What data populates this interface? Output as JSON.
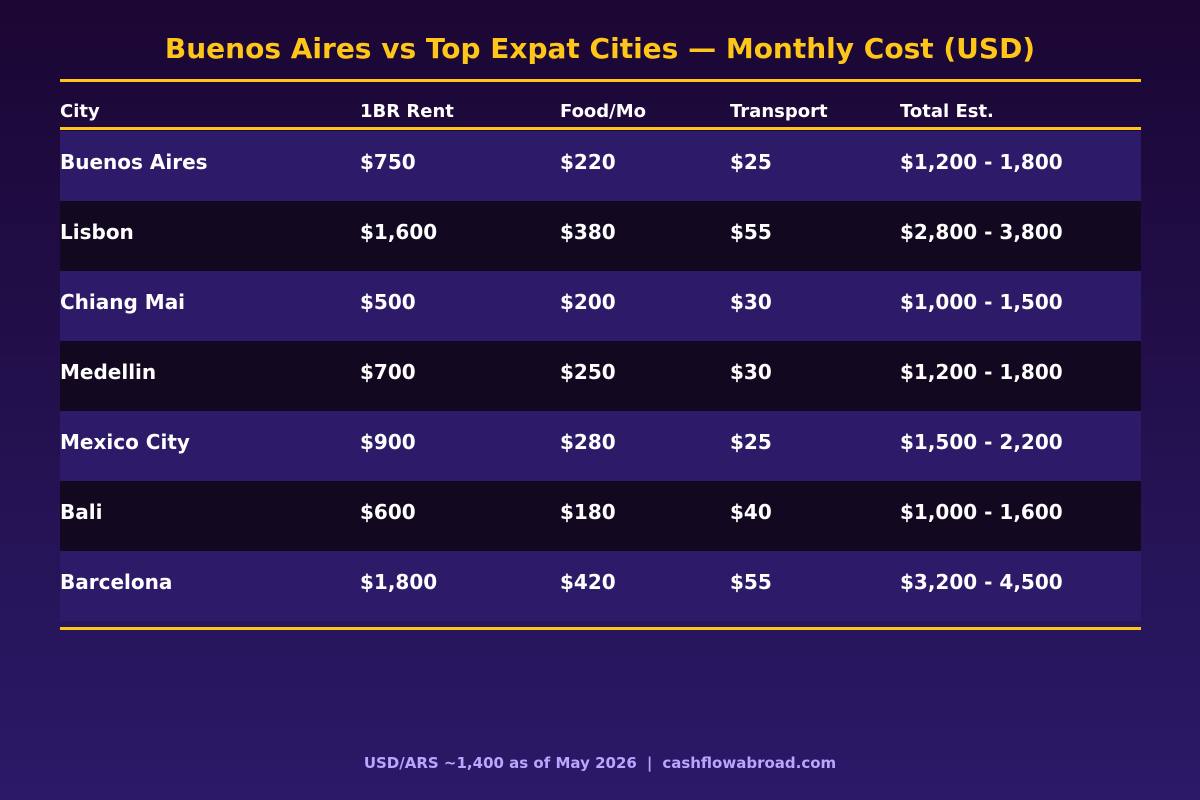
{
  "title": "Buenos Aires vs Top Expat Cities — Monthly Cost (USD)",
  "colors": {
    "accent": "#ffc61a",
    "row_odd": "#2d1b6a",
    "row_even": "#12081f",
    "footer_text": "#b9a6ff"
  },
  "table": {
    "headers": [
      "City",
      "1BR Rent",
      "Food/Mo",
      "Transport",
      "Total Est."
    ],
    "rows": [
      [
        "Buenos Aires",
        "$750",
        "$220",
        "$25",
        "$1,200 - 1,800"
      ],
      [
        "Lisbon",
        "$1,600",
        "$380",
        "$55",
        "$2,800 - 3,800"
      ],
      [
        "Chiang Mai",
        "$500",
        "$200",
        "$30",
        "$1,000 - 1,500"
      ],
      [
        "Medellin",
        "$700",
        "$250",
        "$30",
        "$1,200 - 1,800"
      ],
      [
        "Mexico City",
        "$900",
        "$280",
        "$25",
        "$1,500 - 2,200"
      ],
      [
        "Bali",
        "$600",
        "$180",
        "$40",
        "$1,000 - 1,600"
      ],
      [
        "Barcelona",
        "$1,800",
        "$420",
        "$55",
        "$3,200 - 4,500"
      ]
    ]
  },
  "footer": {
    "rate_note": "USD/ARS ~1,400 as of May 2026",
    "separator": "|",
    "site": "cashflowabroad.com"
  },
  "chart_data": {
    "type": "table",
    "title": "Buenos Aires vs Top Expat Cities — Monthly Cost (USD)",
    "columns": [
      "City",
      "1BR Rent",
      "Food/Mo",
      "Transport",
      "Total Est."
    ],
    "rows": [
      [
        "Buenos Aires",
        "$750",
        "$220",
        "$25",
        "$1,200 - 1,800"
      ],
      [
        "Lisbon",
        "$1,600",
        "$380",
        "$55",
        "$2,800 - 3,800"
      ],
      [
        "Chiang Mai",
        "$500",
        "$200",
        "$30",
        "$1,000 - 1,500"
      ],
      [
        "Medellin",
        "$700",
        "$250",
        "$30",
        "$1,200 - 1,800"
      ],
      [
        "Mexico City",
        "$900",
        "$280",
        "$25",
        "$1,500 - 2,200"
      ],
      [
        "Bali",
        "$600",
        "$180",
        "$40",
        "$1,000 - 1,600"
      ],
      [
        "Barcelona",
        "$1,800",
        "$420",
        "$55",
        "$3,200 - 4,500"
      ]
    ]
  }
}
